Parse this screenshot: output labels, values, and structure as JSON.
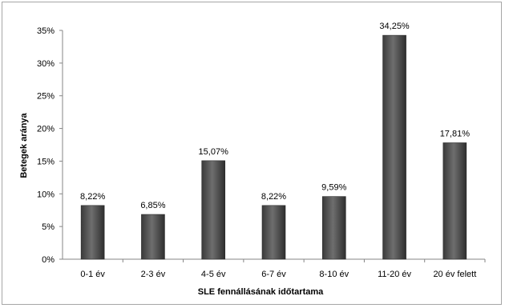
{
  "chart_data": {
    "type": "bar",
    "categories": [
      "0-1 év",
      "2-3 év",
      "4-5 év",
      "6-7 év",
      "8-10 év",
      "11-20 év",
      "20 év felett"
    ],
    "values": [
      8.22,
      6.85,
      15.07,
      8.22,
      9.59,
      34.25,
      17.81
    ],
    "data_labels": [
      "8,22%",
      "6,85%",
      "15,07%",
      "8,22%",
      "9,59%",
      "34,25%",
      "17,81%"
    ],
    "xlabel": "SLE fennállásának időtartama",
    "ylabel": "Betegek aránya",
    "ylim": [
      0,
      35
    ],
    "yticks": [
      0,
      5,
      10,
      15,
      20,
      25,
      30,
      35
    ],
    "ytick_labels": [
      "0%",
      "5%",
      "10%",
      "15%",
      "20%",
      "25%",
      "30%",
      "35%"
    ],
    "grid": false,
    "legend": "none",
    "bar_color": "#555555"
  }
}
